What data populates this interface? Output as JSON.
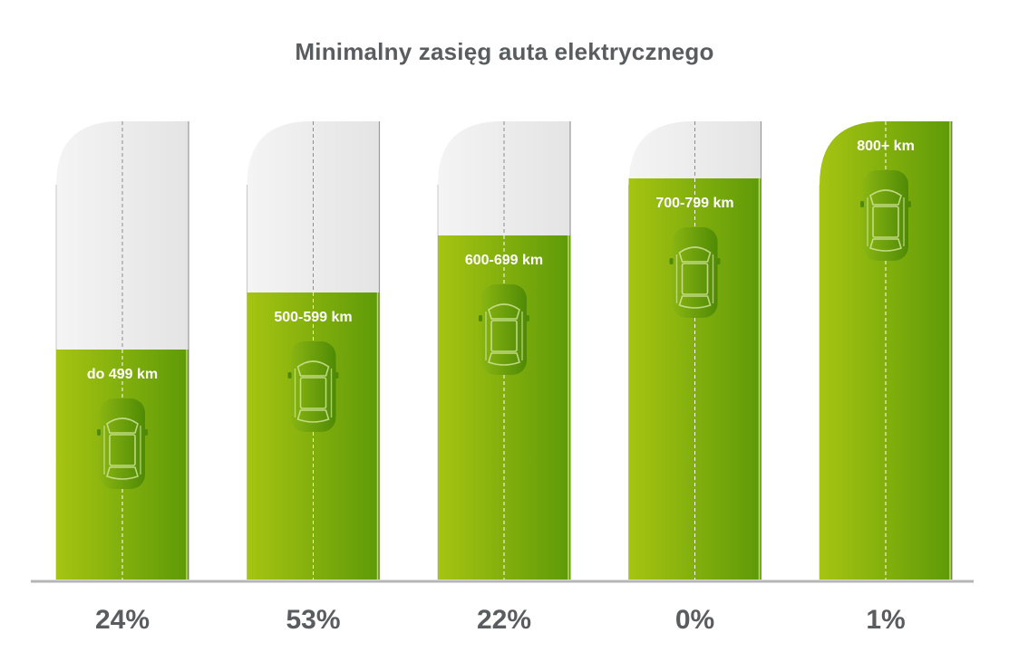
{
  "chart_data": {
    "type": "bar",
    "title": "Minimalny zasięg auta elektrycznego",
    "categories": [
      "do 499 km",
      "500-599 km",
      "600-699 km",
      "700-799 km",
      "800+ km"
    ],
    "values": [
      24,
      53,
      22,
      0,
      1
    ],
    "value_labels": [
      "24%",
      "53%",
      "22%",
      "0%",
      "1%"
    ],
    "xlabel": "",
    "ylabel": "",
    "legend": "none",
    "grid": false
  },
  "colors": {
    "bar_light": "#a6c412",
    "bar_dark": "#5e9a08",
    "track": "#ececec",
    "text": "#5a5d60",
    "baseline": "#b5b5b5"
  },
  "icons": {
    "bar_icon": "car-top-view-icon"
  }
}
